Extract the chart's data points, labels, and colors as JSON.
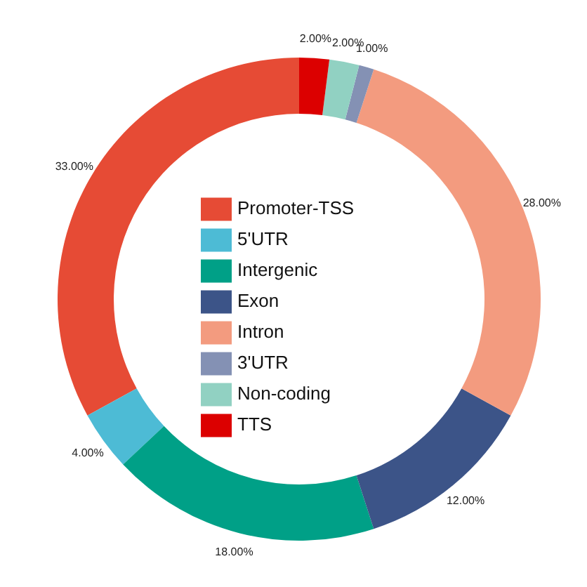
{
  "chart_data": {
    "type": "donut",
    "categories": [
      "Promoter-TSS",
      "5'UTR",
      "Intergenic",
      "Exon",
      "Intron",
      "3'UTR",
      "Non-coding",
      "TTS"
    ],
    "values": [
      33,
      4,
      18,
      12,
      28,
      1,
      2,
      2
    ],
    "colors": [
      "#e64b35",
      "#4dbbd5",
      "#00a087",
      "#3c5488",
      "#f39b7f",
      "#8491b4",
      "#91d1c2",
      "#dc0000"
    ],
    "value_labels": [
      "33.00%",
      "4.00%",
      "18.00%",
      "12.00%",
      "28.00%",
      "1.00%",
      "2.00%",
      "2.00%"
    ],
    "legend": "center"
  }
}
